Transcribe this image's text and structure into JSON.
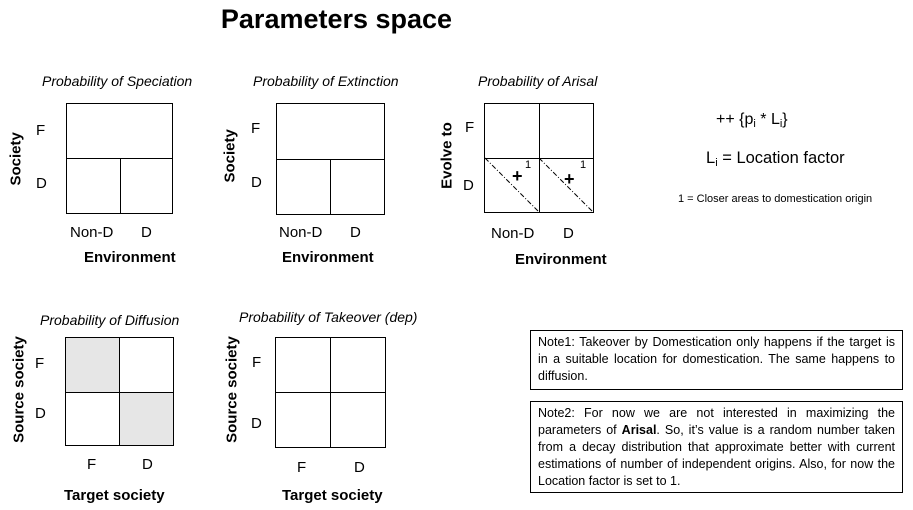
{
  "title": "Parameters space",
  "panels": {
    "speciation": {
      "title": "Probability of Speciation",
      "y_axis": "Society",
      "x_axis": "Environment",
      "row_labels": [
        "F",
        "D"
      ],
      "col_labels": [
        "Non-D",
        "D"
      ]
    },
    "extinction": {
      "title": "Probability of Extinction",
      "y_axis": "Society",
      "x_axis": "Environment",
      "row_labels": [
        "F",
        "D"
      ],
      "col_labels": [
        "Non-D",
        "D"
      ]
    },
    "arisal": {
      "title": "Probability of Arisal",
      "y_axis": "Evolve to",
      "x_axis": "Environment",
      "row_labels": [
        "F",
        "D"
      ],
      "col_labels": [
        "Non-D",
        "D"
      ],
      "cell_mark": "+",
      "cell_superscript": "1"
    },
    "diffusion": {
      "title": "Probability of Diffusion",
      "y_axis": "Source society",
      "x_axis": "Target society",
      "row_labels": [
        "F",
        "D"
      ],
      "col_labels": [
        "F",
        "D"
      ],
      "highlight_color": "#e6e6e6"
    },
    "takeover": {
      "title": "Probability of Takeover (dep)",
      "y_axis": "Source society",
      "x_axis": "Target society",
      "row_labels": [
        "F",
        "D"
      ],
      "col_labels": [
        "F",
        "D"
      ]
    }
  },
  "formula": {
    "line1_prefix": "++ {p",
    "line1_sub1": "i",
    "line1_mid": " * L",
    "line1_sub2": "i",
    "line1_suffix": "}",
    "line2_var": "L",
    "line2_sub": "i",
    "line2_rest": " = Location factor",
    "footnote": "1 = Closer areas to domestication origin"
  },
  "note1": {
    "text": "Note1: Takeover by Domestication only happens if the target is in a suitable location for domestication. The same happens to diffusion."
  },
  "note2": {
    "text_before": "Note2: For now we are not interested in maximizing the parameters of ",
    "bold_word": "Arisal",
    "text_after": ". So, it’s value is a random number taken from a decay distribution that approximate better with current estimations of number of independent origins. Also, for now the Location factor is set to 1."
  }
}
